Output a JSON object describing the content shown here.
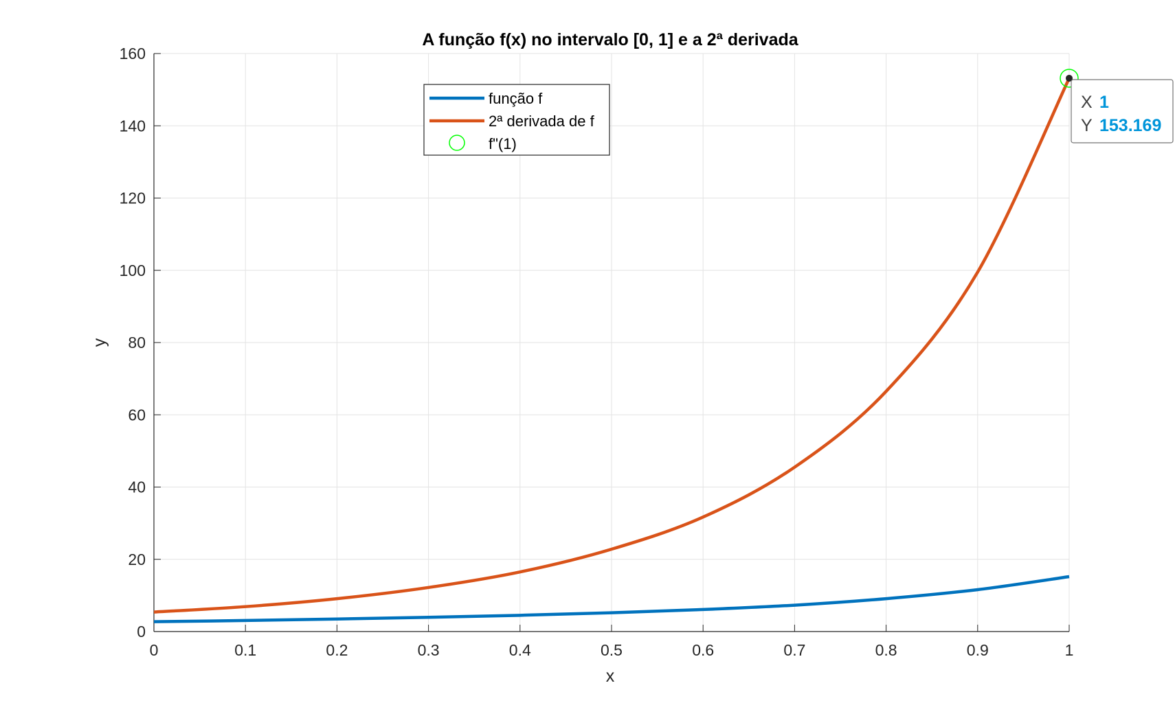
{
  "chart_data": {
    "type": "line",
    "title": "A função f(x) no intervalo [0, 1] e a 2ª derivada",
    "xlabel": "x",
    "ylabel": "y",
    "xlim": [
      0,
      1
    ],
    "ylim": [
      0,
      160
    ],
    "xticks": [
      "0",
      "0.1",
      "0.2",
      "0.3",
      "0.4",
      "0.5",
      "0.6",
      "0.7",
      "0.8",
      "0.9",
      "1"
    ],
    "yticks": [
      "0",
      "20",
      "40",
      "60",
      "80",
      "100",
      "120",
      "140",
      "160"
    ],
    "grid": true,
    "legend_position": "top-center",
    "series": [
      {
        "name": "função f",
        "color": "#0072BD",
        "x": [
          0,
          0.1,
          0.2,
          0.3,
          0.4,
          0.5,
          0.6,
          0.7,
          0.8,
          0.9,
          1.0
        ],
        "y": [
          2.72,
          3.06,
          3.47,
          3.95,
          4.5,
          5.2,
          6.1,
          7.3,
          9.1,
          11.6,
          15.2
        ]
      },
      {
        "name": "2ª derivada de f",
        "color": "#D95319",
        "x": [
          0,
          0.1,
          0.2,
          0.3,
          0.4,
          0.5,
          0.6,
          0.7,
          0.8,
          0.9,
          1.0
        ],
        "y": [
          5.4,
          6.9,
          9.1,
          12.2,
          16.5,
          22.8,
          31.7,
          45.5,
          66.5,
          99.5,
          153.169
        ]
      }
    ],
    "markers": [
      {
        "name": "f\"(1)",
        "x": 1,
        "y": 153.169,
        "color": "#00FF00"
      }
    ],
    "datatip": {
      "x_label": "X",
      "x_value": "1",
      "y_label": "Y",
      "y_value": "153.169",
      "value_color": "#0095DA"
    }
  }
}
